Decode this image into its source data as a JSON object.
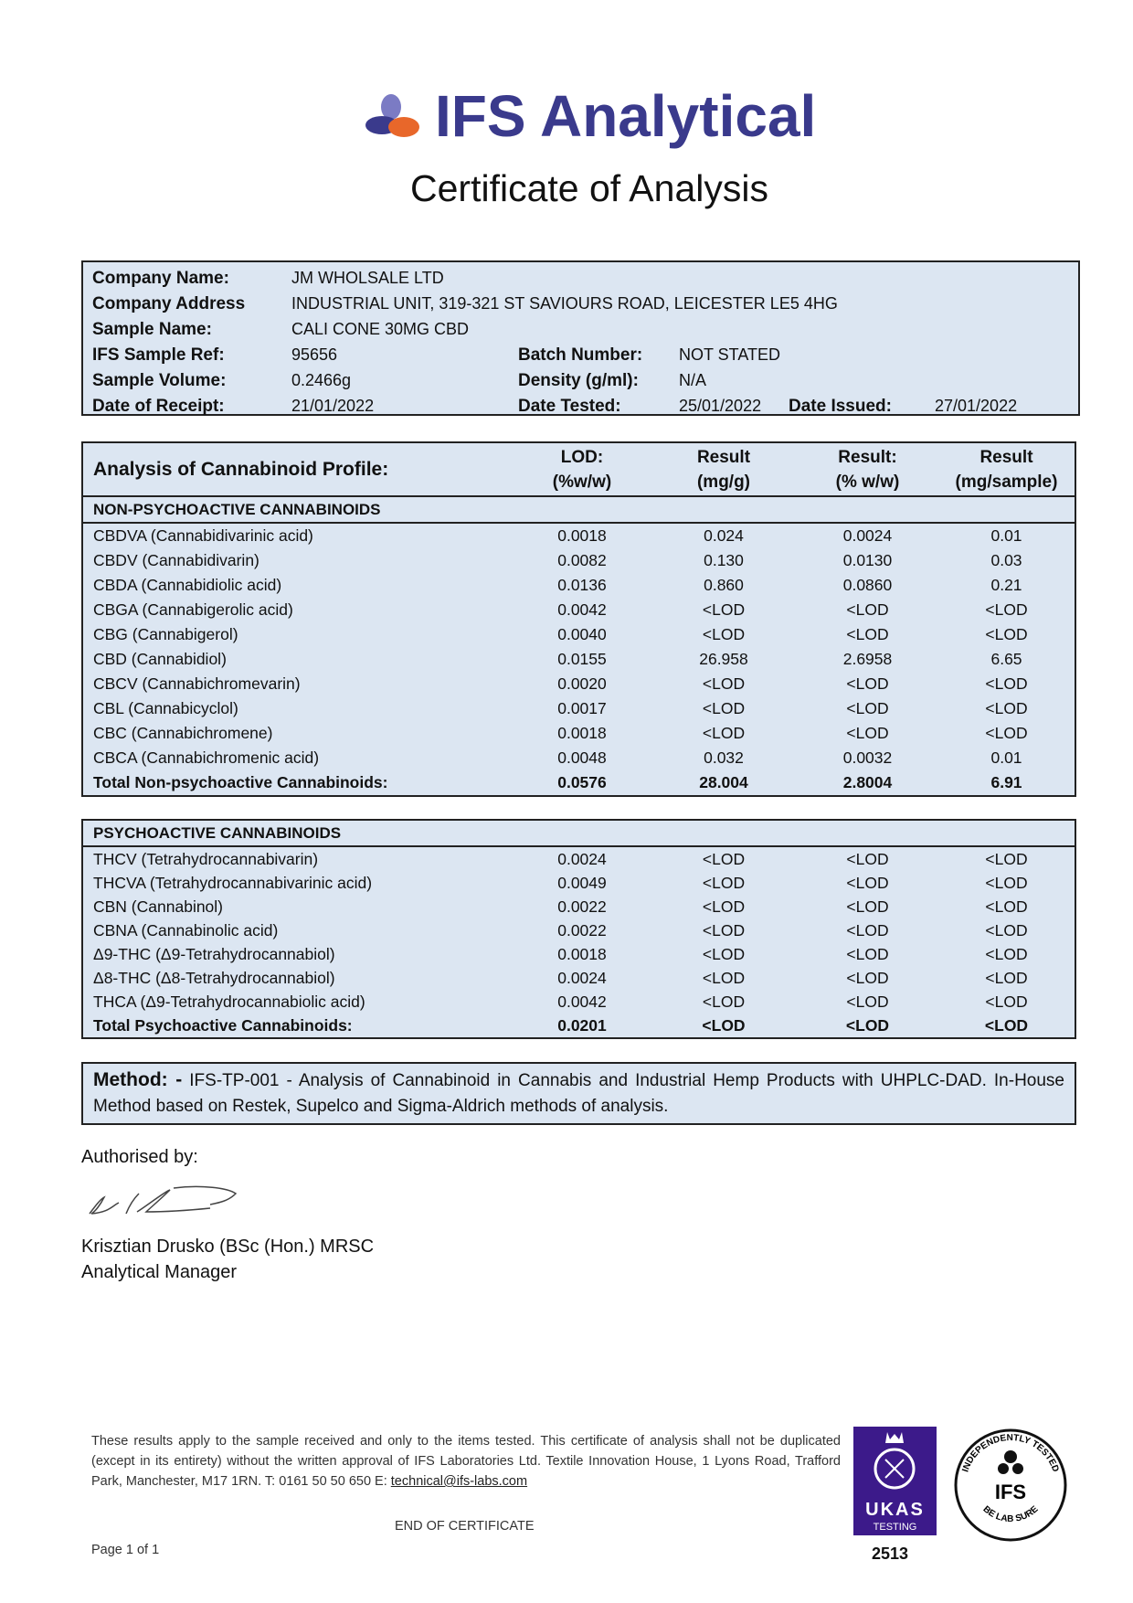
{
  "header": {
    "brand": "IFS Analytical",
    "title": "Certificate of Analysis",
    "brand_color": "#3a3a8c",
    "logo_colors": [
      "#7b7bc4",
      "#3a3a8c",
      "#e8672a"
    ]
  },
  "info": {
    "company_name_label": "Company Name:",
    "company_name": "JM WHOLSALE LTD",
    "company_address_label": "Company Address",
    "company_address": "INDUSTRIAL UNIT, 319-321 ST SAVIOURS ROAD, LEICESTER LE5 4HG",
    "sample_name_label": "Sample Name:",
    "sample_name": "CALI CONE 30MG CBD",
    "sample_ref_label": "IFS Sample Ref:",
    "sample_ref": "95656",
    "batch_label": "Batch Number:",
    "batch": "NOT STATED",
    "volume_label": "Sample Volume:",
    "volume": "0.2466g",
    "density_label": "Density (g/ml):",
    "density": "N/A",
    "receipt_label": "Date of Receipt:",
    "receipt": "21/01/2022",
    "tested_label": "Date Tested:",
    "tested": "25/01/2022",
    "issued_label": "Date Issued:",
    "issued": "27/01/2022"
  },
  "table": {
    "title": "Analysis of Cannabinoid Profile:",
    "columns": [
      {
        "l1": "LOD:",
        "l2": "(%w/w)"
      },
      {
        "l1": "Result",
        "l2": "(mg/g)"
      },
      {
        "l1": "Result:",
        "l2": "(% w/w)"
      },
      {
        "l1": "Result",
        "l2": "(mg/sample)"
      }
    ],
    "non_psycho": {
      "heading": "NON-PSYCHOACTIVE CANNABINOIDS",
      "rows": [
        [
          "CBDVA (Cannabidivarinic acid)",
          "0.0018",
          "0.024",
          "0.0024",
          "0.01"
        ],
        [
          "CBDV (Cannabidivarin)",
          "0.0082",
          "0.130",
          "0.0130",
          "0.03"
        ],
        [
          "CBDA (Cannabidiolic acid)",
          "0.0136",
          "0.860",
          "0.0860",
          "0.21"
        ],
        [
          "CBGA (Cannabigerolic acid)",
          "0.0042",
          "<LOD",
          "<LOD",
          "<LOD"
        ],
        [
          "CBG (Cannabigerol)",
          "0.0040",
          "<LOD",
          "<LOD",
          "<LOD"
        ],
        [
          "CBD (Cannabidiol)",
          "0.0155",
          "26.958",
          "2.6958",
          "6.65"
        ],
        [
          "CBCV (Cannabichromevarin)",
          "0.0020",
          "<LOD",
          "<LOD",
          "<LOD"
        ],
        [
          "CBL (Cannabicyclol)",
          "0.0017",
          "<LOD",
          "<LOD",
          "<LOD"
        ],
        [
          "CBC (Cannabichromene)",
          "0.0018",
          "<LOD",
          "<LOD",
          "<LOD"
        ],
        [
          "CBCA (Cannabichromenic acid)",
          "0.0048",
          "0.032",
          "0.0032",
          "0.01"
        ]
      ],
      "total": [
        "Total Non-psychoactive Cannabinoids:",
        "0.0576",
        "28.004",
        "2.8004",
        "6.91"
      ]
    },
    "psycho": {
      "heading": "PSYCHOACTIVE CANNABINOIDS",
      "rows": [
        [
          "THCV (Tetrahydrocannabivarin)",
          "0.0024",
          "<LOD",
          "<LOD",
          "<LOD"
        ],
        [
          "THCVA (Tetrahydrocannabivarinic acid)",
          "0.0049",
          "<LOD",
          "<LOD",
          "<LOD"
        ],
        [
          "CBN (Cannabinol)",
          "0.0022",
          "<LOD",
          "<LOD",
          "<LOD"
        ],
        [
          "CBNA (Cannabinolic acid)",
          "0.0022",
          "<LOD",
          "<LOD",
          "<LOD"
        ],
        [
          "Δ9-THC (Δ9-Tetrahydrocannabiol)",
          "0.0018",
          "<LOD",
          "<LOD",
          "<LOD"
        ],
        [
          "Δ8-THC (Δ8-Tetrahydrocannabiol)",
          "0.0024",
          "<LOD",
          "<LOD",
          "<LOD"
        ],
        [
          "THCA (Δ9-Tetrahydrocannabiolic acid)",
          "0.0042",
          "<LOD",
          "<LOD",
          "<LOD"
        ]
      ],
      "total": [
        "Total Psychoactive Cannabinoids:",
        "0.0201",
        "<LOD",
        "<LOD",
        "<LOD"
      ]
    },
    "bg_color": "#dce6f2"
  },
  "method": {
    "label": "Method: -",
    "text": "IFS-TP-001 - Analysis of Cannabinoid in Cannabis and Industrial Hemp Products with UHPLC-DAD. In-House Method based on Restek, Supelco and Sigma-Aldrich methods of analysis."
  },
  "auth": {
    "label": "Authorised by:",
    "name": "Krisztian Drusko (BSc (Hon.) MRSC",
    "role": "Analytical Manager"
  },
  "footer": {
    "disclaimer": "These results apply to the sample received and only to the items tested. This certificate of analysis shall not be duplicated (except in its entirety) without the written approval of IFS Laboratories Ltd. Textile Innovation House, 1 Lyons Road, Trafford Park, Manchester, M17 1RN. T: 0161 50 50 650 E: ",
    "email": "technical@ifs-labs.com",
    "end": "END OF CERTIFICATE",
    "page": "Page 1 of 1",
    "ukas_text": "UKAS",
    "ukas_sub": "TESTING",
    "ukas_number": "2513",
    "ukas_color": "#3c1a8a",
    "seal_top": "INDEPENDENTLY TESTED",
    "seal_center": "IFS",
    "seal_bottom": "BE LAB SURE"
  }
}
